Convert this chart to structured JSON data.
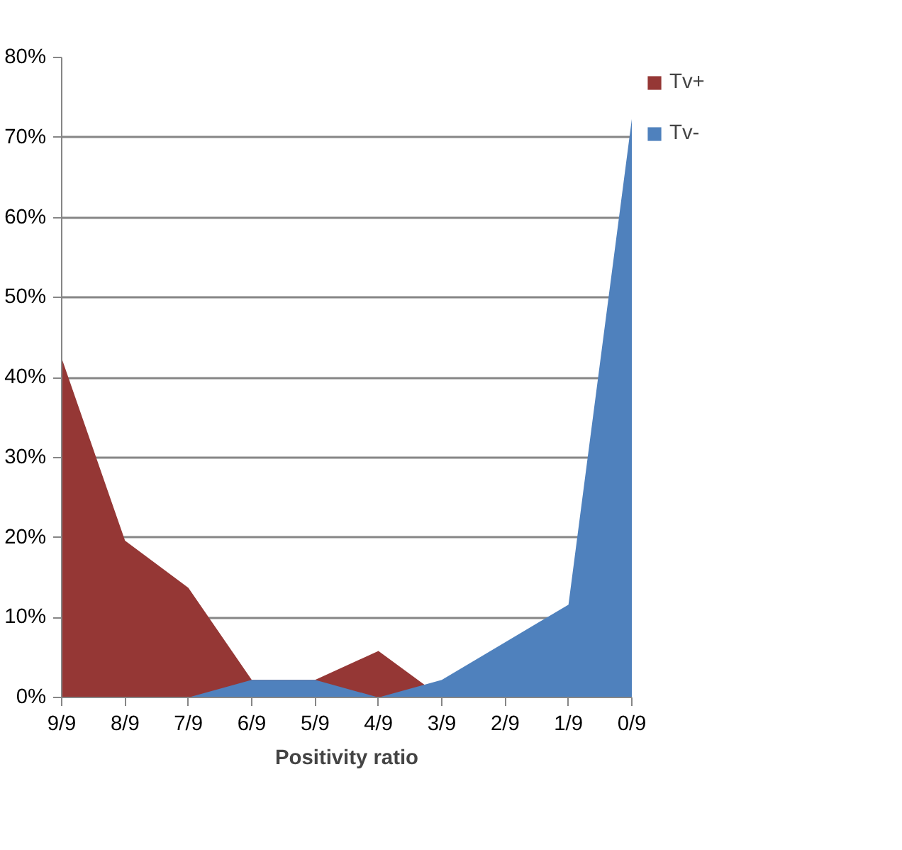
{
  "chart_data": {
    "type": "area",
    "xlabel": "Positivity ratio",
    "categories": [
      "9/9",
      "8/9",
      "7/9",
      "6/9",
      "5/9",
      "4/9",
      "3/9",
      "2/9",
      "1/9",
      "0/9"
    ],
    "series": [
      {
        "name": "Tv+",
        "color": "#953735",
        "values": [
          42.4,
          19.6,
          13.7,
          2.2,
          2.2,
          5.8,
          0,
          0,
          0,
          0
        ]
      },
      {
        "name": "Tv-",
        "color": "#4f81bd",
        "values": [
          0,
          0,
          0,
          2.2,
          2.2,
          0,
          2.2,
          6.9,
          11.6,
          72.3
        ]
      }
    ],
    "ylim": [
      0,
      80
    ],
    "yticks": [
      {
        "value": 0,
        "label": "0%"
      },
      {
        "value": 10,
        "label": "10%"
      },
      {
        "value": 20,
        "label": "20%"
      },
      {
        "value": 30,
        "label": "30%"
      },
      {
        "value": 40,
        "label": "40%"
      },
      {
        "value": 50,
        "label": "50%"
      },
      {
        "value": 60,
        "label": "60%"
      },
      {
        "value": 70,
        "label": "70%"
      },
      {
        "value": 80,
        "label": "80%"
      }
    ],
    "grid": "y",
    "legend": "right"
  }
}
